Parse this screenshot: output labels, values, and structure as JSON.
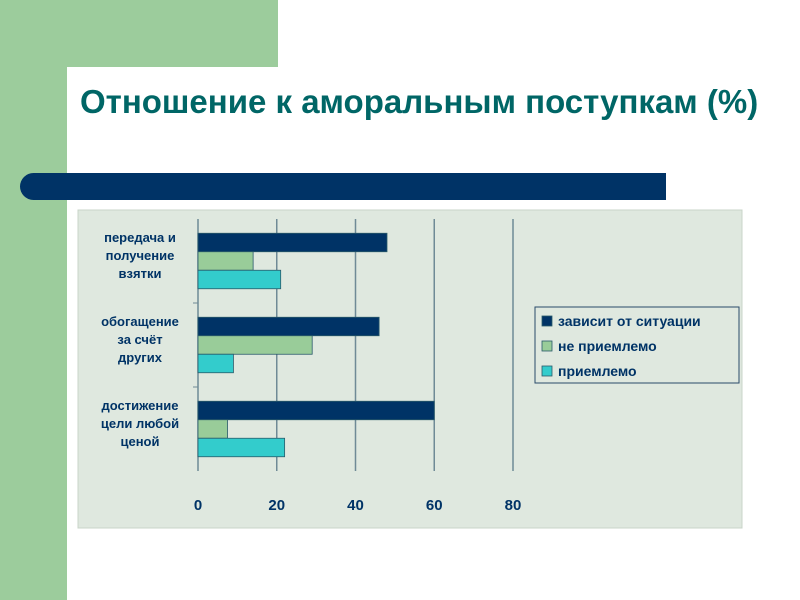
{
  "slide": {
    "title": "Отношение к аморальным поступкам (%)"
  },
  "colors": {
    "dark": "#003366",
    "green": "#99cc99",
    "cyan": "#33cccc",
    "background": "#dfe8df",
    "title": "#006666"
  },
  "chart_data": {
    "type": "bar",
    "orientation": "horizontal",
    "title": "Отношение к аморальным поступкам (%)",
    "categories": [
      [
        "передача и",
        "получение",
        "взятки"
      ],
      [
        "обогащение",
        "за счёт",
        "других"
      ],
      [
        "достижение",
        "цели любой",
        "ценой"
      ]
    ],
    "series": [
      {
        "name": "зависит от ситуации",
        "color": "#003366",
        "values": [
          48,
          46,
          60
        ]
      },
      {
        "name": "не приемлемо",
        "color": "#99cc99",
        "values": [
          14,
          29,
          7.5
        ]
      },
      {
        "name": "приемлемо",
        "color": "#33cccc",
        "values": [
          21,
          9,
          22
        ]
      }
    ],
    "xlim": [
      0,
      80
    ],
    "xticks": [
      "0",
      "20",
      "40",
      "60",
      "80"
    ],
    "grid": true,
    "legend": "right"
  }
}
